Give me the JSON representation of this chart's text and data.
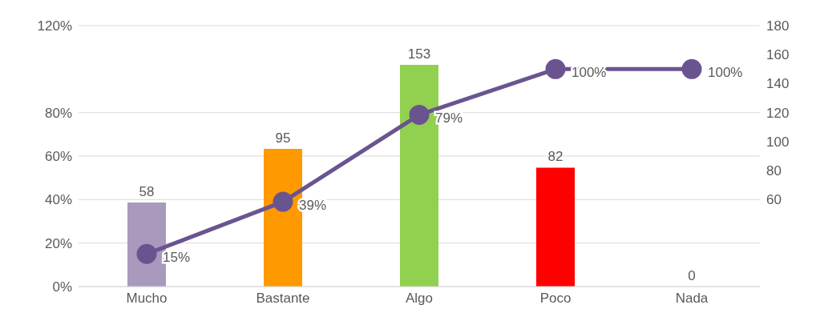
{
  "chart_data": {
    "type": "bar",
    "categories": [
      "Mucho",
      "Bastante",
      "Algo",
      "Poco",
      "Nada"
    ],
    "series": [
      {
        "axis": "y2",
        "values": [
          58,
          95,
          153,
          82,
          0
        ],
        "colors": [
          "#a899bd",
          "#ff9900",
          "#92d050",
          "#ff0000",
          "#7f7f7f"
        ],
        "data_labels": true
      },
      {
        "type": "line",
        "axis": "y",
        "color": "#6a5490",
        "values": [
          15,
          39,
          79,
          100,
          100
        ],
        "marker": "circle",
        "line_style": "solid",
        "value_labels": [
          "15%",
          "39%",
          "79%",
          "100%",
          "100%"
        ]
      }
    ],
    "ylim": [
      0,
      120
    ],
    "yticks": [
      {
        "value": 0,
        "label": "0%"
      },
      {
        "value": 20,
        "label": "20%"
      },
      {
        "value": 40,
        "label": "40%"
      },
      {
        "value": 60,
        "label": "60%"
      },
      {
        "value": 80,
        "label": "80%"
      },
      {
        "value": 120,
        "label": "120%"
      }
    ],
    "y2lim": [
      0,
      180
    ],
    "y2ticks": [
      60,
      80,
      100,
      120,
      140,
      160,
      180
    ],
    "grid": "y",
    "legend": false
  }
}
